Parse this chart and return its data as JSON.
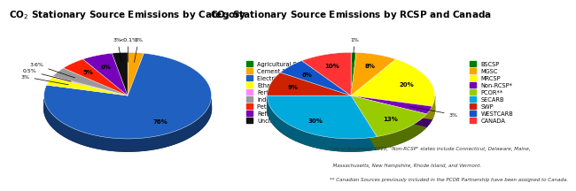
{
  "chart1": {
    "title": "CO$_2$ Stationary Source Emissions by Category",
    "labels": [
      "Agricultural Processing",
      "Cement Plant",
      "Electricity Production",
      "Ethanol",
      "Fertilizer",
      "Industrial",
      "Petroleum/Natural Gas",
      "Refineries/Chemical",
      "Unclassified"
    ],
    "values": [
      0.1,
      3,
      76,
      3,
      0.5,
      3.6,
      5,
      6,
      3
    ],
    "colors": [
      "#008000",
      "#FFA500",
      "#2060C0",
      "#FFFF00",
      "#FF88FF",
      "#999999",
      "#FF2200",
      "#7700BB",
      "#111111"
    ],
    "pct_labels": [
      "<0.1%",
      "3%",
      "76%",
      "3%",
      "0.5%",
      "3.6%",
      "5%",
      "6%",
      "3%"
    ]
  },
  "chart2": {
    "title": "CO$_2$ Stationary Source Emissions by RCSP and Canada",
    "labels": [
      "BSCSP",
      "MGSC",
      "MRCSP",
      "Non-RCSP*",
      "PCOR**",
      "SECARB",
      "SWP",
      "WESTCARB",
      "CANADA"
    ],
    "values": [
      1,
      8,
      20,
      3,
      13,
      30,
      9,
      6,
      10
    ],
    "colors": [
      "#008000",
      "#FFA500",
      "#FFFF00",
      "#7700BB",
      "#99CC00",
      "#00AADD",
      "#CC2200",
      "#1155CC",
      "#FF3333"
    ],
    "pct_labels": [
      "1%",
      "8%",
      "20%",
      "3%",
      "13%",
      "30%",
      "9%",
      "6%",
      "10%"
    ]
  },
  "bg_color": "#FFFFFF",
  "footnote1": "* As of November 2010, \"Non-RCSP\" states include Connecticut, Delaware, Maine,",
  "footnote1b": "  Massachusetts, New Hampshire, Rhode Island, and Vermont.",
  "footnote2": "** Canadian Sources previously included in the PCOR Partnership have been assigned to Canada."
}
